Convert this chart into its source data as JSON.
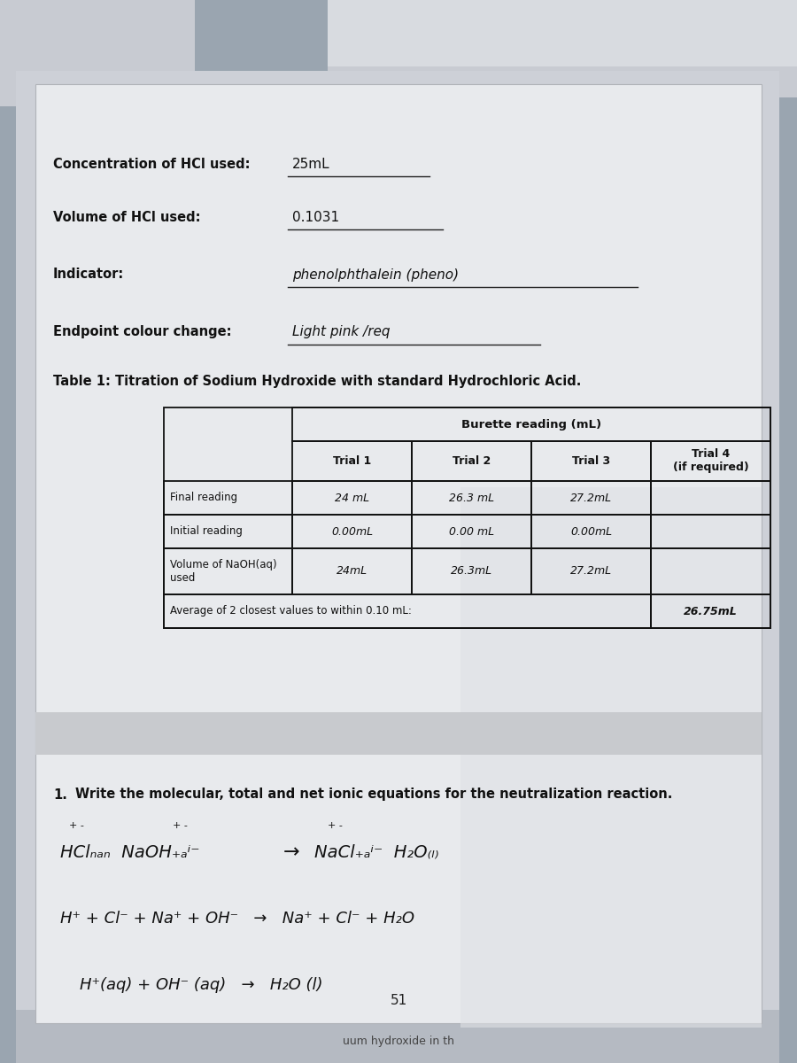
{
  "bg_color": "#9aa5b0",
  "paper_main_color": "#dfe1e5",
  "paper_top_color": "#d0d3d8",
  "paper_bottom_color": "#c8ccd3",
  "field_labels": [
    "Concentration of HCl used:",
    "Volume of HCl used:",
    "Indicator:",
    "Endpoint colour change:"
  ],
  "field_values_typed": [
    "",
    "",
    "",
    ""
  ],
  "field_values_hand": [
    "25mL",
    "0.1031",
    "phenolphthalein (pheno)",
    "Light pink /req"
  ],
  "table_title": "Table 1: Titration of Sodium Hydroxide with standard Hydrochloric Acid.",
  "table_header_row1": "Burette reading (mL)",
  "table_col_headers": [
    "Trial 1",
    "Trial 2",
    "Trial 3",
    "Trial 4\n(if required)"
  ],
  "row_labels": [
    "Final reading",
    "Initial reading",
    "Volume of NaOH(aq)\nused"
  ],
  "table_data": [
    [
      "24 mL",
      "26.3 mL",
      "27.2mL",
      ""
    ],
    [
      "0.00mL",
      "0.00 mL",
      "0.00mL",
      ""
    ],
    [
      "24mL",
      "26.3mL",
      "27.2mL",
      ""
    ]
  ],
  "avg_text": "Average of 2 closest values to within 0.10 mL:",
  "avg_val": "26.75mL",
  "q_num": "1.",
  "q_text": "Write the molecular, total and net ionic equations for the neutralization reaction.",
  "page_num": "51",
  "footer_text": "uum hydroxide in th"
}
